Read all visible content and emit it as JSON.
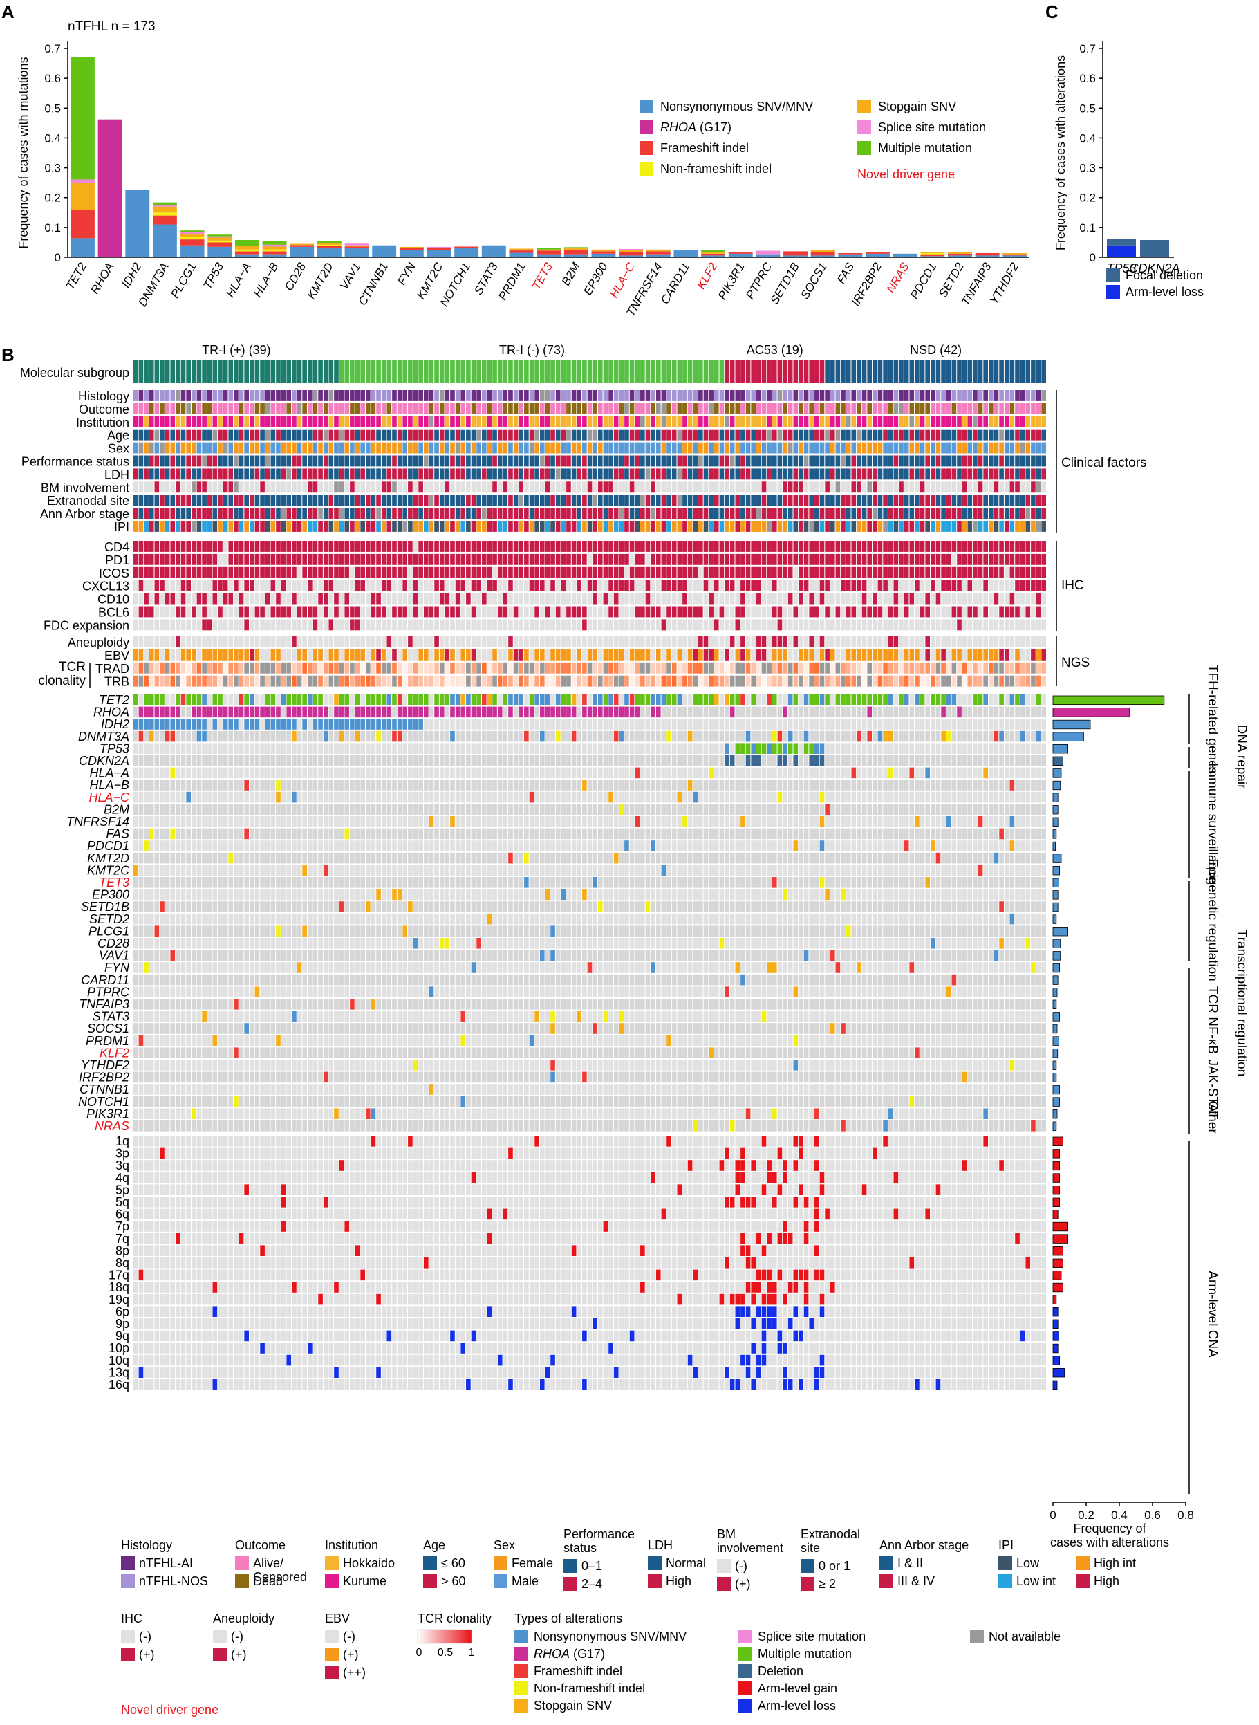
{
  "panel_labels": {
    "a": "A",
    "b": "B",
    "c": "C"
  },
  "colors": {
    "nonsyn": "#4e93cf",
    "rhoa": "#cc2e98",
    "frameshift": "#ee3b36",
    "nonframeshift": "#f2f010",
    "stopgain": "#f6ad17",
    "splice": "#f08ad8",
    "multiple": "#63c214",
    "deletion": "#3a6892",
    "gain": "#e8141a",
    "loss": "#1330e8",
    "na": "#999999",
    "grey_bg": "#e1e1e1",
    "grey_dark": "#cbcbcb",
    "tr_pos": "#1d7d6c",
    "tr_neg": "#58c145",
    "ac53": "#c81c48",
    "nsd": "#1d5b8a",
    "novel": "#e8141a"
  },
  "chart_data": [
    {
      "panel": "A",
      "type": "bar",
      "title": "nTFHL n = 173",
      "ylabel": "Frequency of cases with mutations",
      "ylim": [
        0,
        0.7
      ],
      "yticks": [
        "0",
        "0.1",
        "0.2",
        "0.3",
        "0.4",
        "0.5",
        "0.6",
        "0.7"
      ],
      "categories": [
        "TET2",
        "RHOA",
        "IDH2",
        "DNMT3A",
        "PLCG1",
        "TP53",
        "HLA−A",
        "HLA−B",
        "CD28",
        "KMT2D",
        "VAV1",
        "CTNNB1",
        "FYN",
        "KMT2C",
        "NOTCH1",
        "STAT3",
        "PRDM1",
        "TET3",
        "B2M",
        "EP300",
        "HLA−C",
        "TNFRSF14",
        "CARD11",
        "KLF2",
        "PIK3R1",
        "PTPRC",
        "SETD1B",
        "SOCS1",
        "FAS",
        "IRF2BP2",
        "NRAS",
        "PDCD1",
        "SETD2",
        "TNFAIP3",
        "YTHDF2"
      ],
      "novel": [
        "TET3",
        "HLA−C",
        "KLF2",
        "NRAS"
      ],
      "series": [
        {
          "name": "Nonsynonymous SNV/MNV",
          "key": "nonsyn",
          "values": [
            0.064,
            0,
            0.225,
            0.11,
            0.04,
            0.035,
            0.01,
            0.01,
            0.035,
            0.03,
            0.03,
            0.04,
            0.025,
            0.025,
            0.03,
            0.04,
            0.015,
            0.01,
            0.01,
            0.012,
            0.006,
            0.01,
            0.025,
            0.006,
            0.012,
            0.01,
            0.006,
            0.006,
            0.01,
            0.012,
            0.012,
            0.004,
            0.006,
            0.006,
            0.006
          ]
        },
        {
          "name": "RHOA (G17)",
          "key": "rhoa",
          "values": [
            0,
            0.462,
            0,
            0,
            0,
            0,
            0,
            0,
            0,
            0,
            0,
            0,
            0,
            0,
            0,
            0,
            0,
            0,
            0,
            0,
            0,
            0,
            0,
            0,
            0,
            0,
            0,
            0,
            0,
            0,
            0,
            0,
            0,
            0,
            0
          ]
        },
        {
          "name": "Frameshift indel",
          "key": "frameshift",
          "values": [
            0.095,
            0,
            0,
            0.03,
            0.02,
            0.015,
            0.01,
            0.01,
            0.006,
            0.008,
            0.006,
            0,
            0.006,
            0.006,
            0.006,
            0,
            0.008,
            0.012,
            0.014,
            0.008,
            0.012,
            0.01,
            0,
            0.006,
            0.006,
            0,
            0.014,
            0.012,
            0.004,
            0.006,
            0,
            0.006,
            0.006,
            0.008,
            0.004
          ]
        },
        {
          "name": "Non-frameshift indel",
          "key": "nonframeshift",
          "values": [
            0,
            0,
            0,
            0.01,
            0.008,
            0.006,
            0.006,
            0.006,
            0,
            0.004,
            0,
            0,
            0,
            0,
            0,
            0,
            0,
            0,
            0,
            0,
            0,
            0,
            0,
            0,
            0,
            0,
            0,
            0,
            0,
            0,
            0,
            0.004,
            0,
            0,
            0
          ]
        },
        {
          "name": "Stopgain SNV",
          "key": "stopgain",
          "values": [
            0.09,
            0,
            0,
            0.02,
            0.01,
            0.01,
            0.012,
            0.01,
            0.004,
            0.006,
            0.004,
            0,
            0.004,
            0,
            0,
            0,
            0.006,
            0.004,
            0.006,
            0.006,
            0.006,
            0.006,
            0,
            0.004,
            0,
            0,
            0,
            0.006,
            0,
            0,
            0,
            0.004,
            0.006,
            0,
            0.004
          ]
        },
        {
          "name": "Splice site mutation",
          "key": "splice",
          "values": [
            0.012,
            0,
            0,
            0.004,
            0.006,
            0.004,
            0,
            0.006,
            0,
            0,
            0.006,
            0,
            0,
            0.004,
            0,
            0,
            0,
            0,
            0,
            0,
            0.004,
            0,
            0,
            0,
            0,
            0.012,
            0,
            0,
            0,
            0,
            0,
            0,
            0,
            0,
            0
          ]
        },
        {
          "name": "Multiple mutation",
          "key": "multiple",
          "values": [
            0.41,
            0,
            0,
            0.01,
            0.006,
            0.006,
            0.02,
            0.012,
            0,
            0.006,
            0,
            0,
            0,
            0,
            0,
            0,
            0,
            0.006,
            0.004,
            0,
            0,
            0,
            0,
            0.008,
            0,
            0,
            0,
            0,
            0,
            0,
            0,
            0,
            0,
            0,
            0
          ]
        }
      ]
    },
    {
      "panel": "C",
      "type": "bar",
      "ylabel": "Frequency of cases with alterations",
      "ylim": [
        0,
        0.7
      ],
      "yticks": [
        "0",
        "0.1",
        "0.2",
        "0.3",
        "0.4",
        "0.5",
        "0.6",
        "0.7"
      ],
      "categories": [
        "TP53",
        "CDKN2A"
      ],
      "series": [
        {
          "name": "Arm-level loss",
          "key": "loss",
          "values": [
            0.04,
            0
          ]
        },
        {
          "name": "Focal deletion",
          "key": "deletion",
          "values": [
            0.022,
            0.058
          ]
        }
      ]
    },
    {
      "panel": "B",
      "type": "heatmap",
      "n_samples": 173,
      "subgroups": [
        {
          "label": "TR-I (+) (39)",
          "n": 39,
          "key": "tr_pos"
        },
        {
          "label": "TR-I (-) (73)",
          "n": 73,
          "key": "tr_neg"
        },
        {
          "label": "AC53 (19)",
          "n": 19,
          "key": "ac53"
        },
        {
          "label": "NSD (42)",
          "n": 42,
          "key": "nsd"
        }
      ],
      "subgroup_row": "Molecular subgroup",
      "clinical_rows": [
        "Histology",
        "Outcome",
        "Institution",
        "Age",
        "Sex",
        "Performance status",
        "LDH",
        "BM involvement",
        "Extranodal site",
        "Ann Arbor stage",
        "IPI"
      ],
      "clinical_group": "Clinical factors",
      "ihc_rows": [
        "CD4",
        "PD1",
        "ICOS",
        "CXCL13",
        "CD10",
        "BCL6",
        "FDC expansion"
      ],
      "ihc_group": "IHC",
      "ngs_rows": [
        "Aneuploidy",
        "EBV",
        "TRAD",
        "TRB"
      ],
      "ngs_group": "NGS",
      "tcr_label_1": "TCR",
      "tcr_label_2": "clonality",
      "gene_rows": [
        "TET2",
        "RHOA",
        "IDH2",
        "DNMT3A",
        "TP53",
        "CDKN2A",
        "HLA−A",
        "HLA−B",
        "HLA−C",
        "B2M",
        "TNFRSF14",
        "FAS",
        "PDCD1",
        "KMT2D",
        "KMT2C",
        "TET3",
        "EP300",
        "SETD1B",
        "SETD2",
        "PLCG1",
        "CD28",
        "VAV1",
        "FYN",
        "CARD11",
        "PTPRC",
        "TNFAIP3",
        "STAT3",
        "SOCS1",
        "PRDM1",
        "KLF2",
        "YTHDF2",
        "IRF2BP2",
        "CTNNB1",
        "NOTCH1",
        "PIK3R1",
        "NRAS"
      ],
      "novel_genes": [
        "HLA−C",
        "TET3",
        "KLF2",
        "NRAS"
      ],
      "cna_rows": [
        "1q",
        "3p",
        "3q",
        "4q",
        "5p",
        "5q",
        "6q",
        "7p",
        "7q",
        "8p",
        "8q",
        "17q",
        "18q",
        "19q",
        "6p",
        "9p",
        "9q",
        "10p",
        "10q",
        "13q",
        "16q"
      ],
      "cna_gain_rows": 14,
      "pathway_groups": [
        "TFH-related genes",
        "DNA repair",
        "Immune surveillance",
        "Epigenetic regulation",
        "TCR NF-κB",
        "JAK-STAT",
        "Transcriptional regulation",
        "Other",
        "Arm-level CNA"
      ],
      "right_freq": [
        0.67,
        0.46,
        0.225,
        0.185,
        0.09,
        0.06,
        0.05,
        0.045,
        0.03,
        0.03,
        0.03,
        0.02,
        0.015,
        0.05,
        0.04,
        0.035,
        0.03,
        0.03,
        0.02,
        0.09,
        0.045,
        0.045,
        0.04,
        0.03,
        0.025,
        0.02,
        0.04,
        0.025,
        0.035,
        0.028,
        0.02,
        0.02,
        0.04,
        0.04,
        0.025,
        0.02,
        0.06,
        0.04,
        0.04,
        0.04,
        0.04,
        0.04,
        0.03,
        0.09,
        0.09,
        0.06,
        0.06,
        0.05,
        0.06,
        0.02,
        0.03,
        0.03,
        0.035,
        0.03,
        0.04,
        0.07,
        0.025
      ],
      "right_xticks": [
        "0",
        "0.2",
        "0.4",
        "0.6",
        "0.8"
      ],
      "right_xlabel_1": "Frequency of",
      "right_xlabel_2": "cases with alterations"
    }
  ],
  "legend": {
    "histology": {
      "title": "Histology",
      "items": [
        {
          "label": "nTFHL-AI",
          "color": "#6b2d84"
        },
        {
          "label": "nTFHL-NOS",
          "color": "#a494d6"
        }
      ]
    },
    "outcome": {
      "title": "Outcome",
      "items": [
        {
          "label": "Alive/",
          "label2": "Censored",
          "color": "#f57ebf"
        },
        {
          "label": "Dead",
          "color": "#8c6a14"
        }
      ]
    },
    "institution": {
      "title": "Institution",
      "items": [
        {
          "label": "Hokkaido",
          "color": "#f6b530"
        },
        {
          "label": "Kurume",
          "color": "#e5178f"
        }
      ]
    },
    "age": {
      "title": "Age",
      "items": [
        {
          "label": "≤ 60",
          "color": "#1d5b8a"
        },
        {
          "label": "> 60",
          "color": "#c81c48"
        }
      ]
    },
    "sex": {
      "title": "Sex",
      "items": [
        {
          "label": "Female",
          "color": "#f59a1a"
        },
        {
          "label": "Male",
          "color": "#5a9ad6"
        }
      ]
    },
    "ps": {
      "title": "Performance",
      "title2": "status",
      "items": [
        {
          "label": "0–1",
          "color": "#1d5b8a"
        },
        {
          "label": "2–4",
          "color": "#c81c48"
        }
      ]
    },
    "ldh": {
      "title": "LDH",
      "items": [
        {
          "label": "Normal",
          "color": "#1d5b8a"
        },
        {
          "label": "High",
          "color": "#c81c48"
        }
      ]
    },
    "bm": {
      "title": "BM",
      "title2": "involvement",
      "items": [
        {
          "label": "(-)",
          "color": "#e1e1e1"
        },
        {
          "label": "(+)",
          "color": "#c81c48"
        }
      ]
    },
    "extranodal": {
      "title": "Extranodal",
      "title2": "site",
      "items": [
        {
          "label": "0 or 1",
          "color": "#1d5b8a"
        },
        {
          "label": "≥ 2",
          "color": "#c81c48"
        }
      ]
    },
    "annarbor": {
      "title": "Ann Arbor stage",
      "items": [
        {
          "label": "I & II",
          "color": "#1d5b8a"
        },
        {
          "label": "III & IV",
          "color": "#c81c48"
        }
      ]
    },
    "ipi": {
      "title": "IPI",
      "items": [
        {
          "label": "Low",
          "color": "#3e5468"
        },
        {
          "label": "Low int",
          "color": "#27a4e0"
        },
        {
          "label": "High int",
          "color": "#f59a1a"
        },
        {
          "label": "High",
          "color": "#c81c48"
        }
      ]
    },
    "ihc": {
      "title": "IHC",
      "items": [
        {
          "label": "(-)",
          "color": "#e1e1e1"
        },
        {
          "label": "(+)",
          "color": "#c81c48"
        }
      ]
    },
    "aneuploidy": {
      "title": "Aneuploidy",
      "items": [
        {
          "label": "(-)",
          "color": "#e1e1e1"
        },
        {
          "label": "(+)",
          "color": "#c81c48"
        }
      ]
    },
    "ebv": {
      "title": "EBV",
      "items": [
        {
          "label": "(-)",
          "color": "#e1e1e1"
        },
        {
          "label": "(+)",
          "color": "#f59a1a"
        },
        {
          "label": "(++)",
          "color": "#c81c48"
        }
      ]
    },
    "tcr": {
      "title": "TCR clonality",
      "ticks": [
        "0",
        "0.5",
        "1"
      ]
    },
    "types": {
      "title": "Types of alterations",
      "items": [
        {
          "label": "Nonsynonymous SNV/MNV",
          "key": "nonsyn"
        },
        {
          "label": "RHOA (G17)",
          "key": "rhoa"
        },
        {
          "label": "Frameshift indel",
          "key": "frameshift"
        },
        {
          "label": "Non-frameshift indel",
          "key": "nonframeshift"
        },
        {
          "label": "Stopgain SNV",
          "key": "stopgain"
        },
        {
          "label": "Splice site mutation",
          "key": "splice"
        },
        {
          "label": "Multiple mutation",
          "key": "multiple"
        },
        {
          "label": "Deletion",
          "key": "deletion"
        },
        {
          "label": "Arm-level gain",
          "key": "gain"
        },
        {
          "label": "Arm-level loss",
          "key": "loss"
        }
      ]
    },
    "not_available": "Not available",
    "novel_driver": "Novel driver gene"
  },
  "panel_a_legend": {
    "items": [
      {
        "label": "Nonsynonymous SNV/MNV",
        "key": "nonsyn"
      },
      {
        "label": "Stopgain SNV",
        "key": "stopgain"
      },
      {
        "label": "RHOA (G17)",
        "key": "rhoa"
      },
      {
        "label": "Splice site mutation",
        "key": "splice"
      },
      {
        "label": "Frameshift indel",
        "key": "frameshift"
      },
      {
        "label": "Multiple mutation",
        "key": "multiple"
      },
      {
        "label": "Non-frameshift indel",
        "key": "nonframeshift"
      }
    ],
    "novel": "Novel driver gene"
  },
  "panel_c_legend": [
    {
      "label": "Focal deletion",
      "key": "deletion"
    },
    {
      "label": "Arm-level loss",
      "key": "loss"
    }
  ]
}
